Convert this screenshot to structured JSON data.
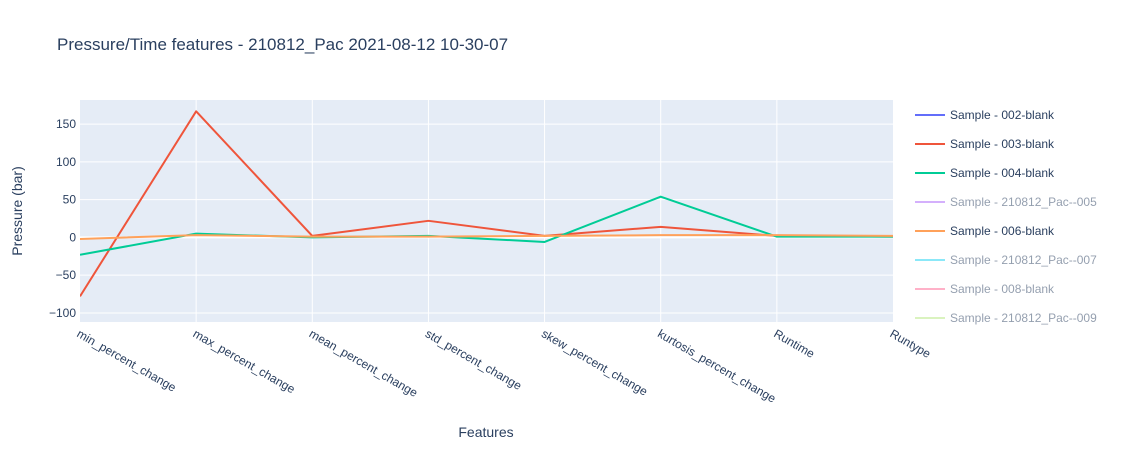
{
  "chart_data": {
    "type": "line",
    "title": "Pressure/Time features - 210812_Pac 2021-08-12 10-30-07",
    "xlabel": "Features",
    "ylabel": "Pressure (bar)",
    "categories": [
      "min_percent_change",
      "max_percent_change",
      "mean_percent_change",
      "std_percent_change",
      "skew_percent_change",
      "kurtosis_percent_change",
      "Runtime",
      "Runtype"
    ],
    "ylim": [
      -112,
      182
    ],
    "yticks": [
      -100,
      -50,
      0,
      50,
      100,
      150
    ],
    "ytick_labels": [
      "−100",
      "−50",
      "0",
      "50",
      "100",
      "150"
    ],
    "grid": true,
    "legend_position": "right",
    "series": [
      {
        "name": "Sample - 002-blank",
        "color": "#636efa",
        "visible": true,
        "values": null
      },
      {
        "name": "Sample - 003-blank",
        "color": "#ef553b",
        "visible": true,
        "values": [
          -78,
          167,
          2,
          22,
          2,
          14,
          2,
          1
        ]
      },
      {
        "name": "Sample - 004-blank",
        "color": "#00cc96",
        "visible": true,
        "values": [
          -23,
          5,
          0,
          2,
          -6,
          54,
          1,
          1
        ]
      },
      {
        "name": "Sample - 210812_Pac--005",
        "color": "#ab63fa",
        "visible": false,
        "values": null
      },
      {
        "name": "Sample - 006-blank",
        "color": "#ffa15a",
        "visible": true,
        "values": [
          -2,
          3,
          1,
          1,
          2,
          3,
          3,
          2
        ]
      },
      {
        "name": "Sample - 210812_Pac--007",
        "color": "#19d3f3",
        "visible": false,
        "values": null
      },
      {
        "name": "Sample - 008-blank",
        "color": "#ff6692",
        "visible": false,
        "values": null
      },
      {
        "name": "Sample - 210812_Pac--009",
        "color": "#b6e880",
        "visible": false,
        "values": null
      }
    ]
  }
}
